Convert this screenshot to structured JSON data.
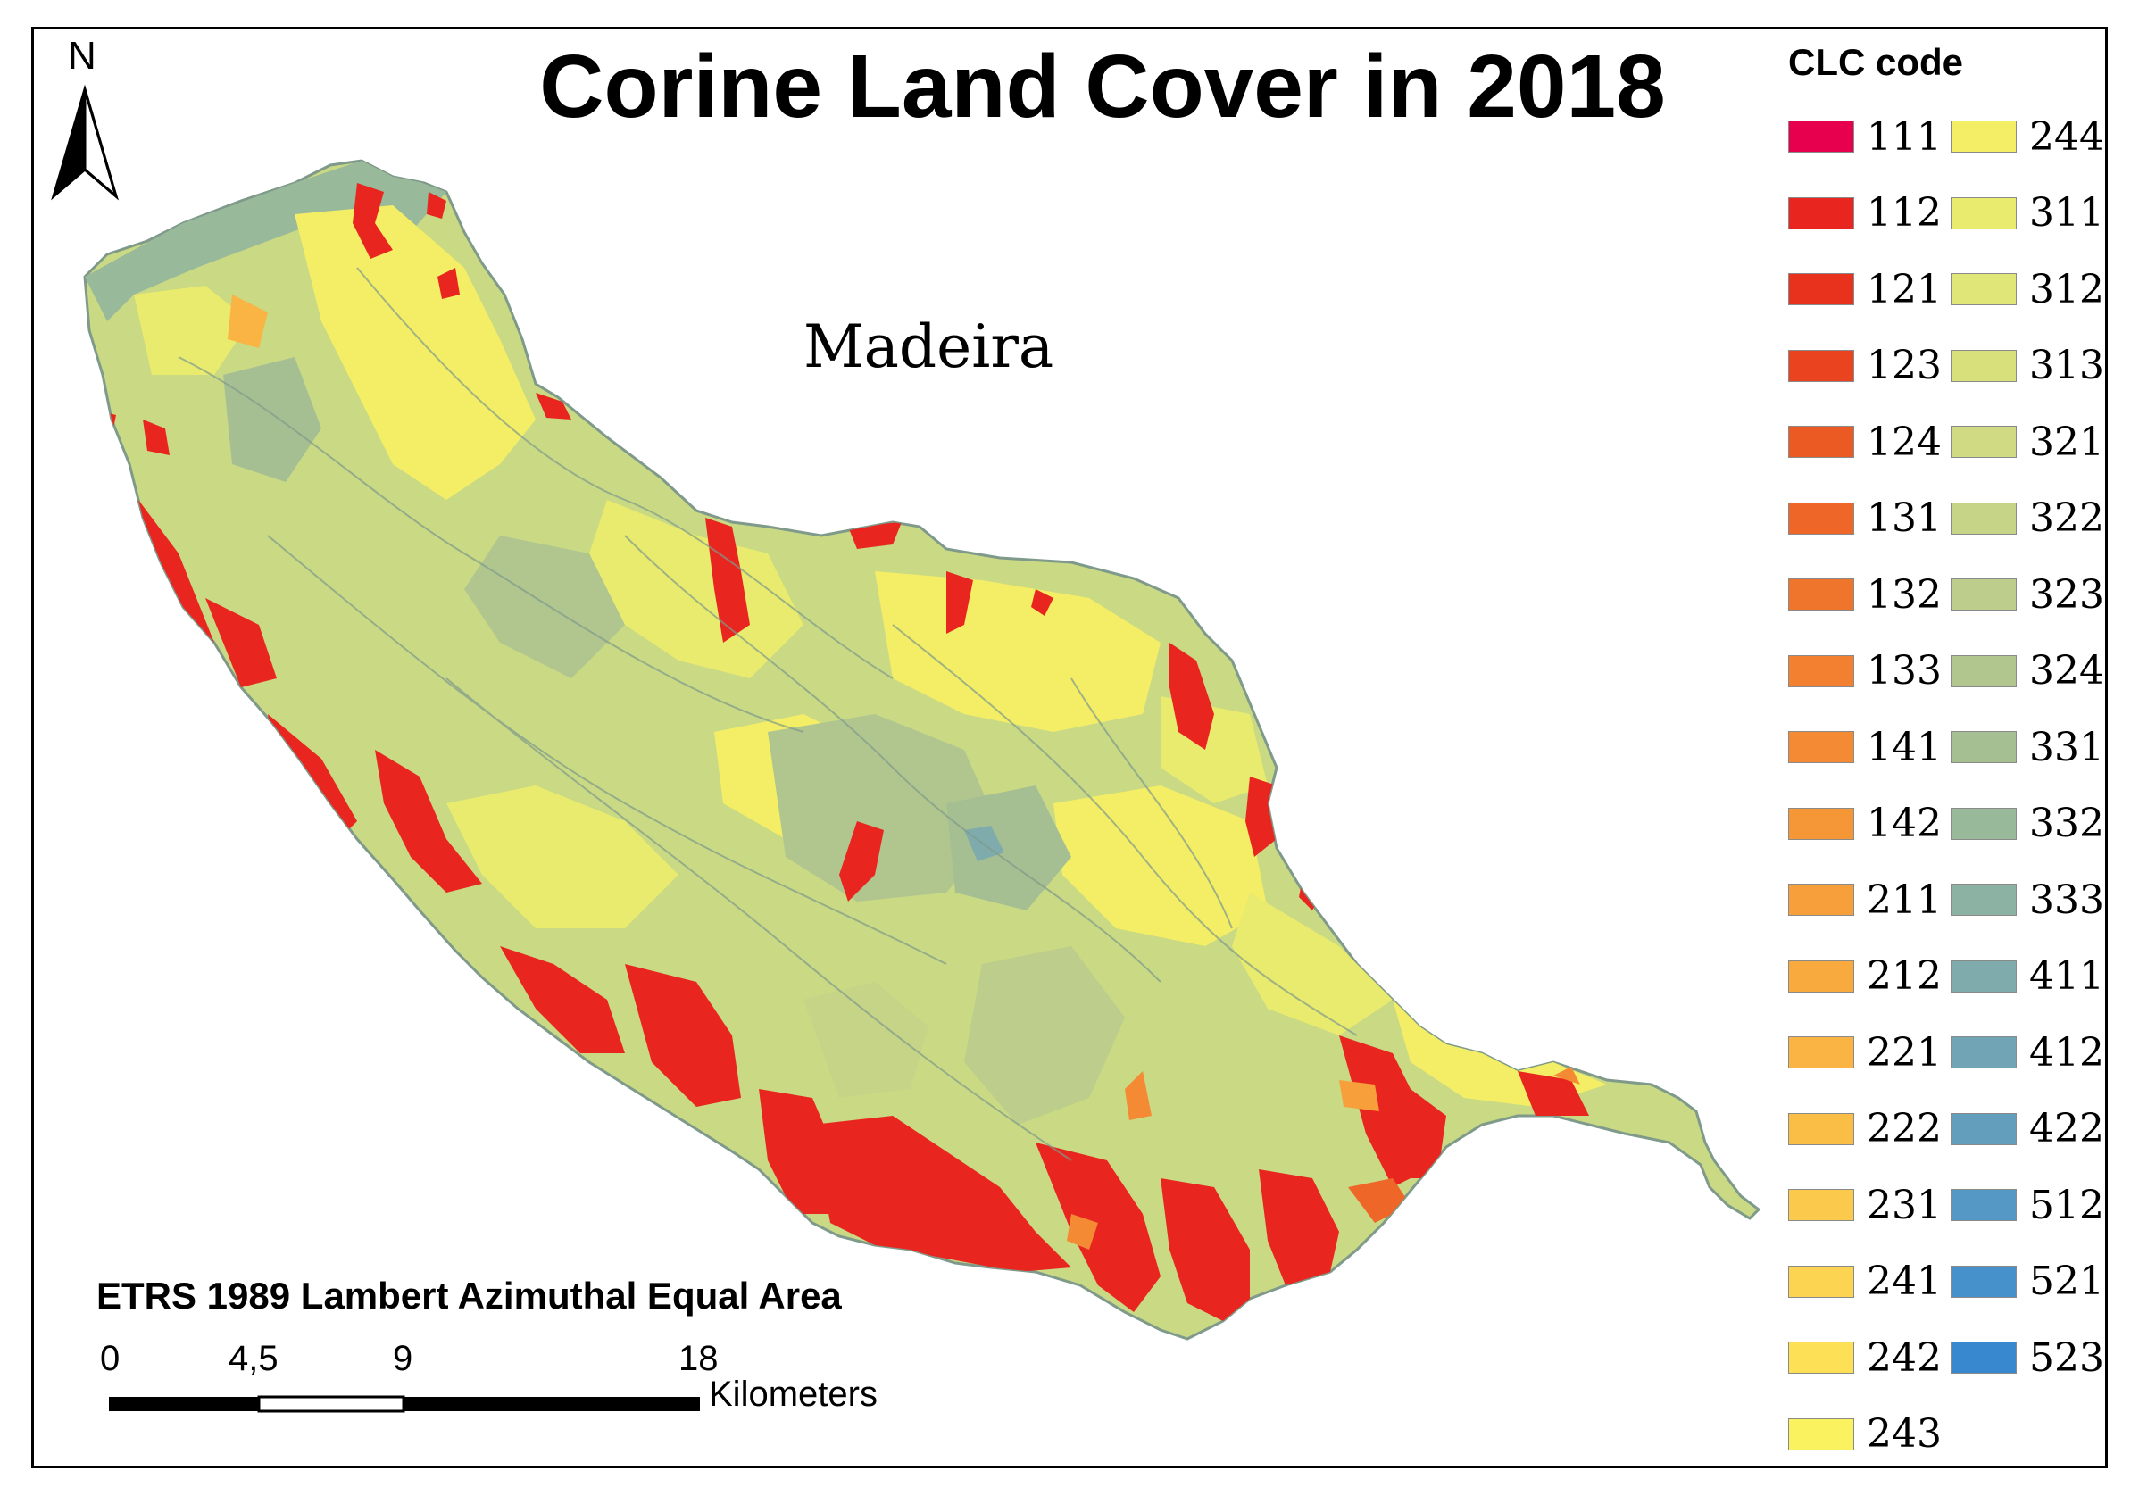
{
  "title": "Corine Land Cover in 2018",
  "island_name": "Madeira",
  "north_arrow": {
    "label": "N",
    "icon": "north-arrow-icon"
  },
  "projection": "ETRS 1989 Lambert Azimuthal Equal Area",
  "scale": {
    "ticks": [
      "0",
      "4,5",
      "9",
      "18"
    ],
    "tick_values_km": [
      0,
      4.5,
      9,
      18
    ],
    "unit": "Kilometers"
  },
  "legend": {
    "title": "CLC code",
    "items": [
      {
        "code": "111",
        "color": "#E6004D"
      },
      {
        "code": "112",
        "color": "#E8261F"
      },
      {
        "code": "121",
        "color": "#E8321E"
      },
      {
        "code": "123",
        "color": "#EA4320"
      },
      {
        "code": "124",
        "color": "#EC5A24"
      },
      {
        "code": "131",
        "color": "#EE6628"
      },
      {
        "code": "132",
        "color": "#F0752C"
      },
      {
        "code": "133",
        "color": "#F28030"
      },
      {
        "code": "141",
        "color": "#F48A33"
      },
      {
        "code": "142",
        "color": "#F59637"
      },
      {
        "code": "211",
        "color": "#F7A03B"
      },
      {
        "code": "212",
        "color": "#F8AA3F"
      },
      {
        "code": "221",
        "color": "#F9B443"
      },
      {
        "code": "222",
        "color": "#FABE47"
      },
      {
        "code": "231",
        "color": "#FBC94C"
      },
      {
        "code": "241",
        "color": "#FCD451"
      },
      {
        "code": "242",
        "color": "#FDE056"
      },
      {
        "code": "243",
        "color": "#FBF260"
      },
      {
        "code": "244",
        "color": "#F3EE66"
      },
      {
        "code": "311",
        "color": "#E9EB6E"
      },
      {
        "code": "312",
        "color": "#E0E678"
      },
      {
        "code": "313",
        "color": "#D8E07C"
      },
      {
        "code": "321",
        "color": "#CFDA82"
      },
      {
        "code": "322",
        "color": "#C6D487"
      },
      {
        "code": "323",
        "color": "#BCCD8C"
      },
      {
        "code": "324",
        "color": "#B1C68F"
      },
      {
        "code": "331",
        "color": "#A6BF92"
      },
      {
        "code": "332",
        "color": "#98B99A"
      },
      {
        "code": "333",
        "color": "#8BB2A2"
      },
      {
        "code": "411",
        "color": "#7FABAD"
      },
      {
        "code": "412",
        "color": "#71A5B5"
      },
      {
        "code": "422",
        "color": "#649EBD"
      },
      {
        "code": "512",
        "color": "#5597C5"
      },
      {
        "code": "521",
        "color": "#4690CC"
      },
      {
        "code": "523",
        "color": "#3888D0"
      }
    ]
  }
}
